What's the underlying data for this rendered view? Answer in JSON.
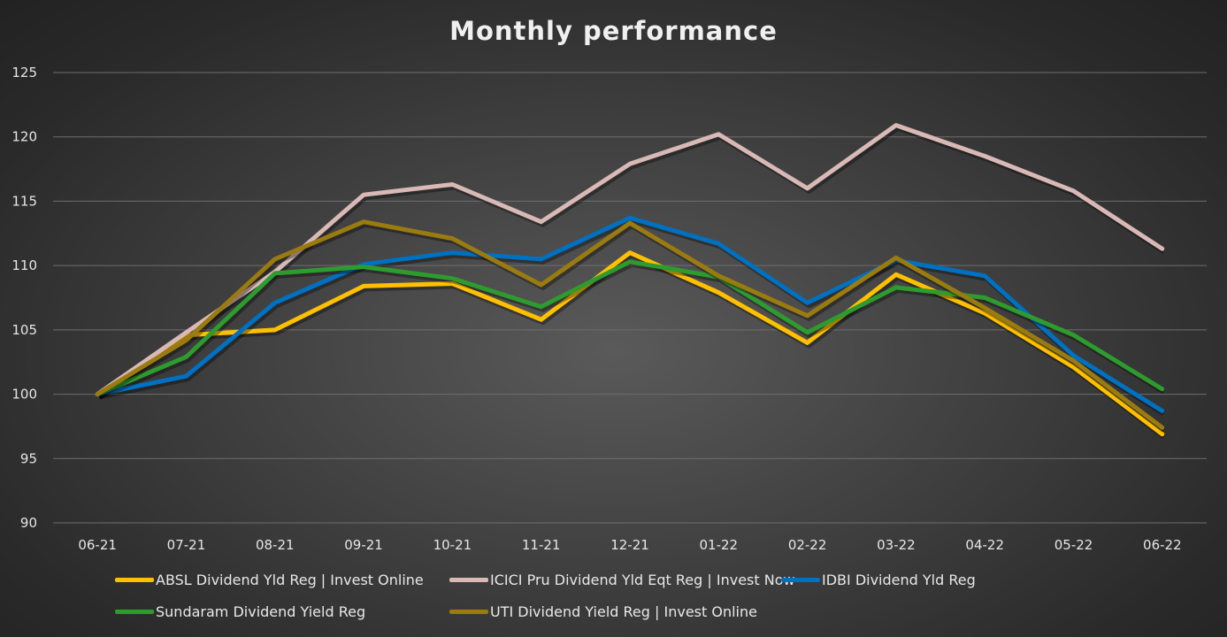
{
  "chart_data": {
    "type": "line",
    "title": "Monthly performance",
    "xlabel": "",
    "ylabel": "",
    "ylim": [
      90,
      125
    ],
    "yticks": [
      90,
      95,
      100,
      105,
      110,
      115,
      120,
      125
    ],
    "grid": true,
    "legend_position": "bottom",
    "categories": [
      "06-21",
      "07-21",
      "08-21",
      "09-21",
      "10-21",
      "11-21",
      "12-21",
      "01-22",
      "02-22",
      "03-22",
      "04-22",
      "05-22",
      "06-22"
    ],
    "series": [
      {
        "name": "ABSL Dividend Yld Reg | Invest Online",
        "color": "#ffc000",
        "values": [
          100.0,
          104.6,
          105.0,
          108.4,
          108.6,
          105.8,
          111.0,
          107.9,
          104.0,
          109.3,
          106.3,
          102.1,
          96.9
        ]
      },
      {
        "name": "ICICI Pru Dividend Yld Eqt Reg | Invest Now",
        "color": "#d9b9b6",
        "values": [
          100.0,
          104.8,
          109.5,
          115.5,
          116.3,
          113.4,
          117.9,
          120.2,
          116.0,
          120.9,
          118.5,
          115.8,
          111.3
        ]
      },
      {
        "name": "IDBI Dividend Yld Reg",
        "color": "#0070c0",
        "values": [
          100.0,
          101.4,
          107.1,
          110.1,
          111.0,
          110.5,
          113.7,
          111.7,
          107.1,
          110.4,
          109.2,
          103.0,
          98.7
        ]
      },
      {
        "name": "Sundaram Dividend Yield Reg",
        "color": "#2e9b2e",
        "values": [
          100.0,
          102.9,
          109.4,
          109.9,
          109.0,
          106.8,
          110.3,
          109.1,
          104.8,
          108.3,
          107.5,
          104.6,
          100.4
        ]
      },
      {
        "name": "UTI Dividend Yield Reg | Invest Online",
        "color": "#9a7b10",
        "values": [
          100.0,
          104.2,
          110.5,
          113.4,
          112.1,
          108.5,
          113.3,
          109.2,
          106.1,
          110.6,
          106.7,
          102.6,
          97.4
        ]
      }
    ]
  }
}
